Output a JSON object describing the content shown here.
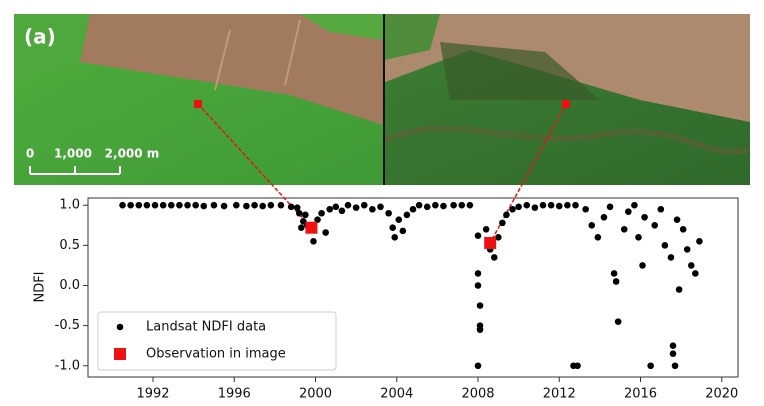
{
  "image": {
    "panel_label": "(a)",
    "scale_labels": [
      "0",
      "1,000",
      "2,000 m"
    ]
  },
  "chart_data": {
    "type": "scatter",
    "y_label": "NDFI",
    "legend": "lower left",
    "xlim": [
      1988.8,
      2020.8
    ],
    "ylim": [
      -1.14,
      1.09
    ],
    "xticks": [
      1992,
      1996,
      2000,
      2004,
      2008,
      2012,
      2016,
      2020
    ],
    "yticks": [
      {
        "value": 1.0,
        "label": "1.0"
      },
      0.5,
      {
        "value": 0.0,
        "label": "0.0"
      },
      -0.5,
      {
        "value": -1.0,
        "label": "-1.0"
      }
    ],
    "series": [
      {
        "name": "Landsat NDFI data",
        "color": "#000000",
        "x": [
          1990.5,
          1990.9,
          1991.3,
          1991.7,
          1992.1,
          1992.5,
          1992.9,
          1993.3,
          1993.7,
          1994.1,
          1994.5,
          1995.0,
          1995.5,
          1996.1,
          1996.6,
          1997.0,
          1997.4,
          1997.8,
          1998.3,
          1998.8,
          1999.1,
          1999.2,
          1999.3,
          1999.4,
          1999.5,
          1999.6,
          1999.9,
          2000.1,
          2000.3,
          2000.5,
          2000.7,
          2001.0,
          2001.3,
          2001.6,
          2002.0,
          2002.4,
          2002.8,
          2003.2,
          2003.6,
          2003.8,
          2003.9,
          2004.1,
          2004.3,
          2004.5,
          2004.8,
          2005.1,
          2005.5,
          2005.9,
          2006.3,
          2006.8,
          2007.2,
          2007.6,
          2008.0,
          2008.0,
          2008.0,
          2008.1,
          2008.1,
          2008.1,
          2008.0,
          2008.4,
          2008.6,
          2008.8,
          2009.0,
          2009.2,
          2009.4,
          2009.7,
          2010.0,
          2010.4,
          2010.8,
          2011.2,
          2011.6,
          2012.0,
          2012.4,
          2012.8,
          2012.7,
          2012.9,
          2013.3,
          2013.6,
          2013.9,
          2014.2,
          2014.5,
          2014.7,
          2014.8,
          2014.9,
          2015.2,
          2015.4,
          2015.7,
          2015.9,
          2016.1,
          2016.2,
          2016.5,
          2016.7,
          2017.0,
          2017.2,
          2017.5,
          2017.6,
          2017.6,
          2017.7,
          2017.8,
          2017.9,
          2018.1,
          2018.3,
          2018.5,
          2018.7,
          2018.9
        ],
        "values": [
          1.0,
          1.0,
          1.0,
          1.0,
          1.0,
          1.0,
          1.0,
          1.0,
          1.0,
          1.0,
          0.99,
          1.0,
          0.99,
          1.0,
          0.99,
          1.0,
          0.99,
          1.0,
          1.0,
          0.98,
          0.97,
          0.9,
          0.72,
          0.8,
          0.88,
          0.75,
          0.55,
          0.82,
          0.9,
          0.66,
          0.95,
          0.98,
          0.93,
          1.0,
          0.97,
          1.0,
          0.95,
          0.98,
          0.9,
          0.72,
          0.6,
          0.82,
          0.68,
          0.88,
          0.95,
          1.0,
          0.98,
          1.0,
          0.99,
          1.0,
          1.0,
          1.0,
          0.62,
          0.15,
          0.0,
          -0.25,
          -0.5,
          -0.55,
          -1.0,
          0.7,
          0.45,
          0.35,
          0.6,
          0.78,
          0.88,
          0.95,
          0.98,
          1.0,
          0.97,
          1.0,
          1.0,
          0.99,
          1.0,
          1.0,
          -1.0,
          -1.0,
          0.95,
          0.75,
          0.6,
          0.85,
          0.98,
          0.15,
          0.05,
          -0.45,
          0.7,
          0.92,
          1.0,
          0.6,
          0.25,
          0.85,
          -1.0,
          0.75,
          0.95,
          0.5,
          0.35,
          -0.75,
          -0.85,
          -1.0,
          0.82,
          -0.05,
          0.7,
          0.45,
          0.25,
          0.15,
          0.55
        ]
      },
      {
        "name": "Observation in image",
        "color": "#ee1111",
        "x": [
          1999.8,
          2008.6
        ],
        "values": [
          0.72,
          0.53
        ]
      }
    ]
  }
}
